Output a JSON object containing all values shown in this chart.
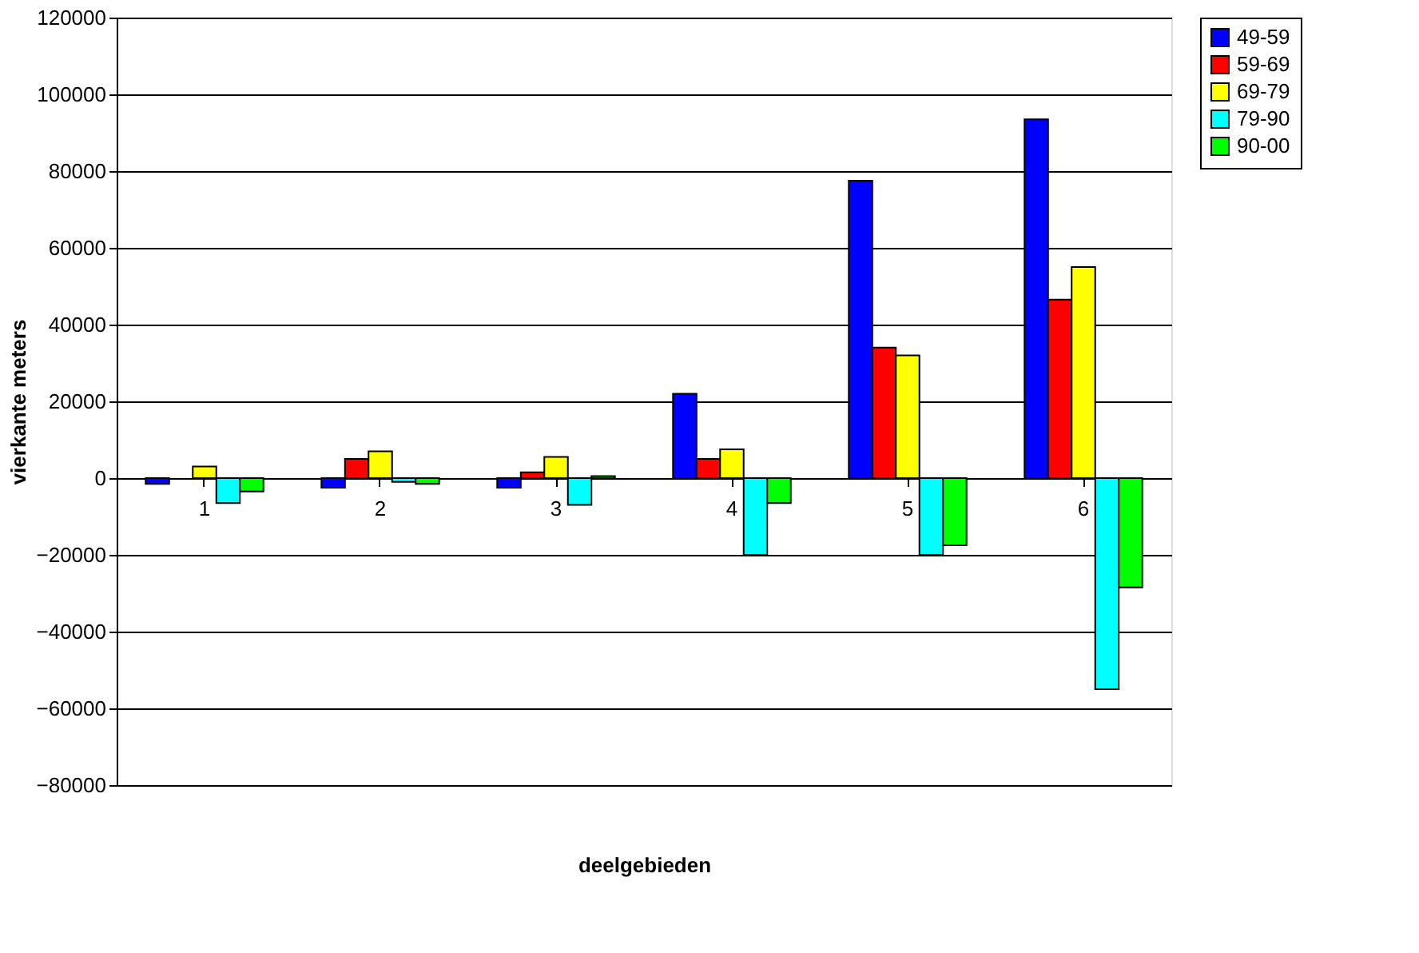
{
  "chart_data": {
    "type": "bar",
    "xlabel": "deelgebieden",
    "ylabel": "vierkante meters",
    "categories": [
      "1",
      "2",
      "3",
      "4",
      "5",
      "6"
    ],
    "series": [
      {
        "name": "49-59",
        "color": "#0000ff",
        "values": [
          -1500,
          -2500,
          -2500,
          22000,
          77500,
          93500
        ]
      },
      {
        "name": "59-69",
        "color": "#ff0000",
        "values": [
          null,
          5000,
          1500,
          5000,
          34000,
          46500
        ]
      },
      {
        "name": "69-79",
        "color": "#ffff00",
        "values": [
          3000,
          7000,
          5500,
          7500,
          32000,
          55000
        ]
      },
      {
        "name": "79-90",
        "color": "#00ffff",
        "values": [
          -6500,
          -1000,
          -7000,
          -20000,
          -20000,
          -55000
        ]
      },
      {
        "name": "90-00",
        "color": "#00ff00",
        "values": [
          -3500,
          -1500,
          500,
          -6500,
          -17500,
          -28500
        ]
      }
    ],
    "ylim": [
      -80000,
      120000
    ],
    "yticks": [
      -80000,
      -60000,
      -40000,
      -20000,
      0,
      20000,
      40000,
      60000,
      80000,
      100000,
      120000
    ],
    "grid": "y",
    "legend": "right"
  }
}
